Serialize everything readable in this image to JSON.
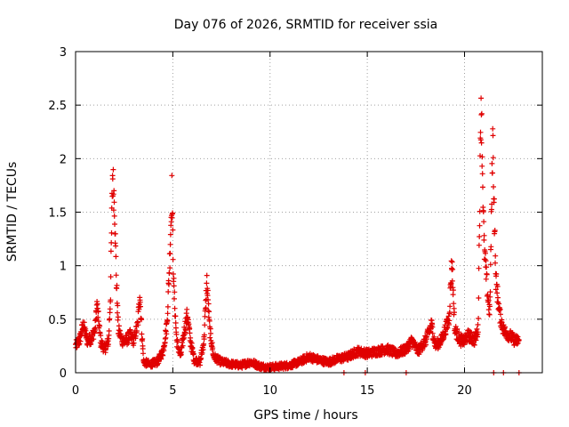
{
  "chart_data": {
    "type": "scatter",
    "title": "Day 076 of 2026, SRMTID for receiver ssia",
    "xlabel": "GPS time / hours",
    "ylabel": "SRMTID / TECUs",
    "xlim": [
      0,
      24
    ],
    "ylim": [
      0,
      3
    ],
    "x_ticks": [
      0,
      5,
      10,
      15,
      20
    ],
    "x_tick_labels": [
      "0",
      "5",
      "10",
      "15",
      "20"
    ],
    "y_ticks": [
      0,
      0.5,
      1,
      1.5,
      2,
      2.5,
      3
    ],
    "y_tick_labels": [
      "0",
      "0.5",
      "1",
      "1.5",
      "2",
      "2.5",
      "3"
    ],
    "grid": true,
    "marker": "+",
    "color": "#e00000",
    "series": [
      {
        "name": "SRMTID",
        "profile": [
          [
            0.0,
            0.25
          ],
          [
            0.2,
            0.3
          ],
          [
            0.4,
            0.45
          ],
          [
            0.6,
            0.3
          ],
          [
            0.8,
            0.32
          ],
          [
            1.0,
            0.4
          ],
          [
            1.1,
            0.64
          ],
          [
            1.3,
            0.28
          ],
          [
            1.5,
            0.22
          ],
          [
            1.7,
            0.3
          ],
          [
            1.8,
            0.75
          ],
          [
            1.9,
            1.85
          ],
          [
            2.0,
            1.6
          ],
          [
            2.1,
            0.85
          ],
          [
            2.2,
            0.4
          ],
          [
            2.4,
            0.3
          ],
          [
            2.6,
            0.3
          ],
          [
            2.8,
            0.35
          ],
          [
            3.0,
            0.3
          ],
          [
            3.2,
            0.45
          ],
          [
            3.3,
            0.75
          ],
          [
            3.4,
            0.4
          ],
          [
            3.5,
            0.1
          ],
          [
            3.8,
            0.08
          ],
          [
            4.2,
            0.1
          ],
          [
            4.5,
            0.2
          ],
          [
            4.7,
            0.45
          ],
          [
            4.85,
            1.1
          ],
          [
            4.95,
            1.7
          ],
          [
            5.05,
            0.8
          ],
          [
            5.2,
            0.3
          ],
          [
            5.4,
            0.15
          ],
          [
            5.6,
            0.4
          ],
          [
            5.75,
            0.55
          ],
          [
            5.9,
            0.3
          ],
          [
            6.1,
            0.12
          ],
          [
            6.4,
            0.1
          ],
          [
            6.6,
            0.3
          ],
          [
            6.75,
            0.85
          ],
          [
            6.9,
            0.4
          ],
          [
            7.1,
            0.15
          ],
          [
            7.5,
            0.1
          ],
          [
            8.0,
            0.08
          ],
          [
            8.5,
            0.07
          ],
          [
            9.0,
            0.1
          ],
          [
            9.5,
            0.06
          ],
          [
            10.0,
            0.05
          ],
          [
            10.5,
            0.06
          ],
          [
            11.0,
            0.07
          ],
          [
            11.5,
            0.1
          ],
          [
            12.0,
            0.15
          ],
          [
            12.5,
            0.12
          ],
          [
            13.0,
            0.1
          ],
          [
            13.5,
            0.13
          ],
          [
            14.0,
            0.15
          ],
          [
            14.5,
            0.2
          ],
          [
            15.0,
            0.18
          ],
          [
            15.5,
            0.2
          ],
          [
            16.0,
            0.22
          ],
          [
            16.5,
            0.18
          ],
          [
            17.0,
            0.22
          ],
          [
            17.3,
            0.3
          ],
          [
            17.6,
            0.2
          ],
          [
            18.0,
            0.3
          ],
          [
            18.3,
            0.45
          ],
          [
            18.5,
            0.25
          ],
          [
            18.8,
            0.3
          ],
          [
            19.2,
            0.5
          ],
          [
            19.35,
            1.05
          ],
          [
            19.5,
            0.4
          ],
          [
            19.8,
            0.3
          ],
          [
            20.0,
            0.3
          ],
          [
            20.2,
            0.35
          ],
          [
            20.5,
            0.3
          ],
          [
            20.7,
            0.4
          ],
          [
            20.85,
            2.6
          ],
          [
            21.0,
            1.2
          ],
          [
            21.2,
            0.7
          ],
          [
            21.3,
            0.55
          ],
          [
            21.45,
            2.2
          ],
          [
            21.6,
            0.9
          ],
          [
            21.8,
            0.55
          ],
          [
            22.0,
            0.4
          ],
          [
            22.3,
            0.35
          ],
          [
            22.6,
            0.3
          ],
          [
            22.8,
            0.3
          ]
        ],
        "floor_points": [
          13.8,
          14.9,
          17.0,
          21.5,
          22.0,
          22.8
        ]
      }
    ]
  }
}
